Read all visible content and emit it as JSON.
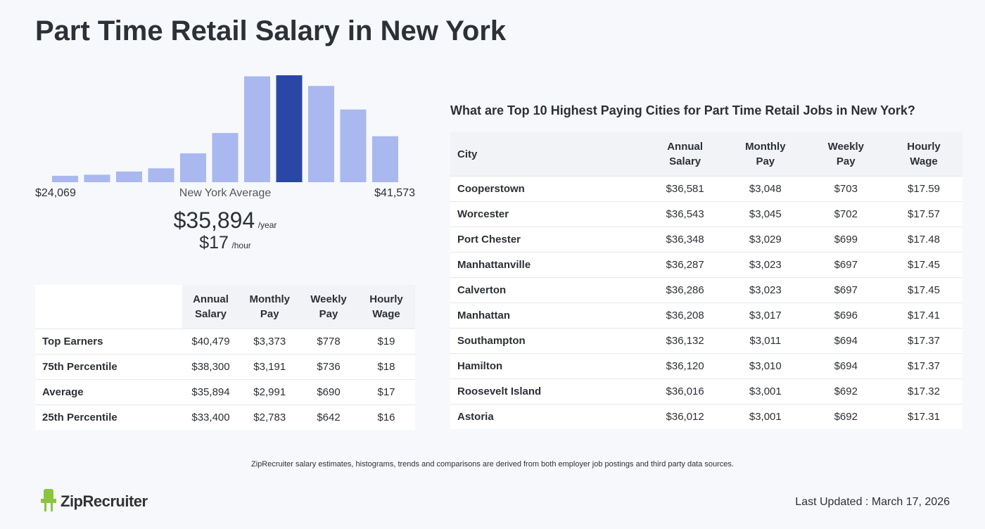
{
  "title": "Part Time Retail Salary in New York",
  "histogram": {
    "values": [
      6,
      7,
      10,
      13,
      27,
      46,
      99,
      100,
      90,
      68,
      43
    ],
    "color": "#a9b8ef",
    "highlight_color": "#2a47a6",
    "highlight_index": 7,
    "min_label": "$24,069",
    "center_label": "New York Average",
    "max_label": "$41,573"
  },
  "average": {
    "annual": "$35,894",
    "annual_unit": "/year",
    "hourly": "$17",
    "hourly_unit": "/hour"
  },
  "percentile_table": {
    "headers": [
      "Annual Salary",
      "Monthly Pay",
      "Weekly Pay",
      "Hourly Wage"
    ],
    "rows": [
      [
        "Top Earners",
        "$40,479",
        "$3,373",
        "$778",
        "$19"
      ],
      [
        "75th Percentile",
        "$38,300",
        "$3,191",
        "$736",
        "$18"
      ],
      [
        "Average",
        "$35,894",
        "$2,991",
        "$690",
        "$17"
      ],
      [
        "25th Percentile",
        "$33,400",
        "$2,783",
        "$642",
        "$16"
      ]
    ]
  },
  "cities_table": {
    "title": "What are Top 10 Highest Paying Cities for Part Time Retail Jobs in New York?",
    "headers": [
      "City",
      "Annual Salary",
      "Monthly Pay",
      "Weekly Pay",
      "Hourly Wage"
    ],
    "rows": [
      [
        "Cooperstown",
        "$36,581",
        "$3,048",
        "$703",
        "$17.59"
      ],
      [
        "Worcester",
        "$36,543",
        "$3,045",
        "$702",
        "$17.57"
      ],
      [
        "Port Chester",
        "$36,348",
        "$3,029",
        "$699",
        "$17.48"
      ],
      [
        "Manhattanville",
        "$36,287",
        "$3,023",
        "$697",
        "$17.45"
      ],
      [
        "Calverton",
        "$36,286",
        "$3,023",
        "$697",
        "$17.45"
      ],
      [
        "Manhattan",
        "$36,208",
        "$3,017",
        "$696",
        "$17.41"
      ],
      [
        "Southampton",
        "$36,132",
        "$3,011",
        "$694",
        "$17.37"
      ],
      [
        "Hamilton",
        "$36,120",
        "$3,010",
        "$694",
        "$17.37"
      ],
      [
        "Roosevelt Island",
        "$36,016",
        "$3,001",
        "$692",
        "$17.32"
      ],
      [
        "Astoria",
        "$36,012",
        "$3,001",
        "$692",
        "$17.31"
      ]
    ]
  },
  "footer": {
    "note": "ZipRecruiter salary estimates, histograms, trends and comparisons are derived from both employer job postings and third party data sources.",
    "logo": "ZipRecruiter",
    "updated": "Last Updated : March 17, 2026"
  }
}
